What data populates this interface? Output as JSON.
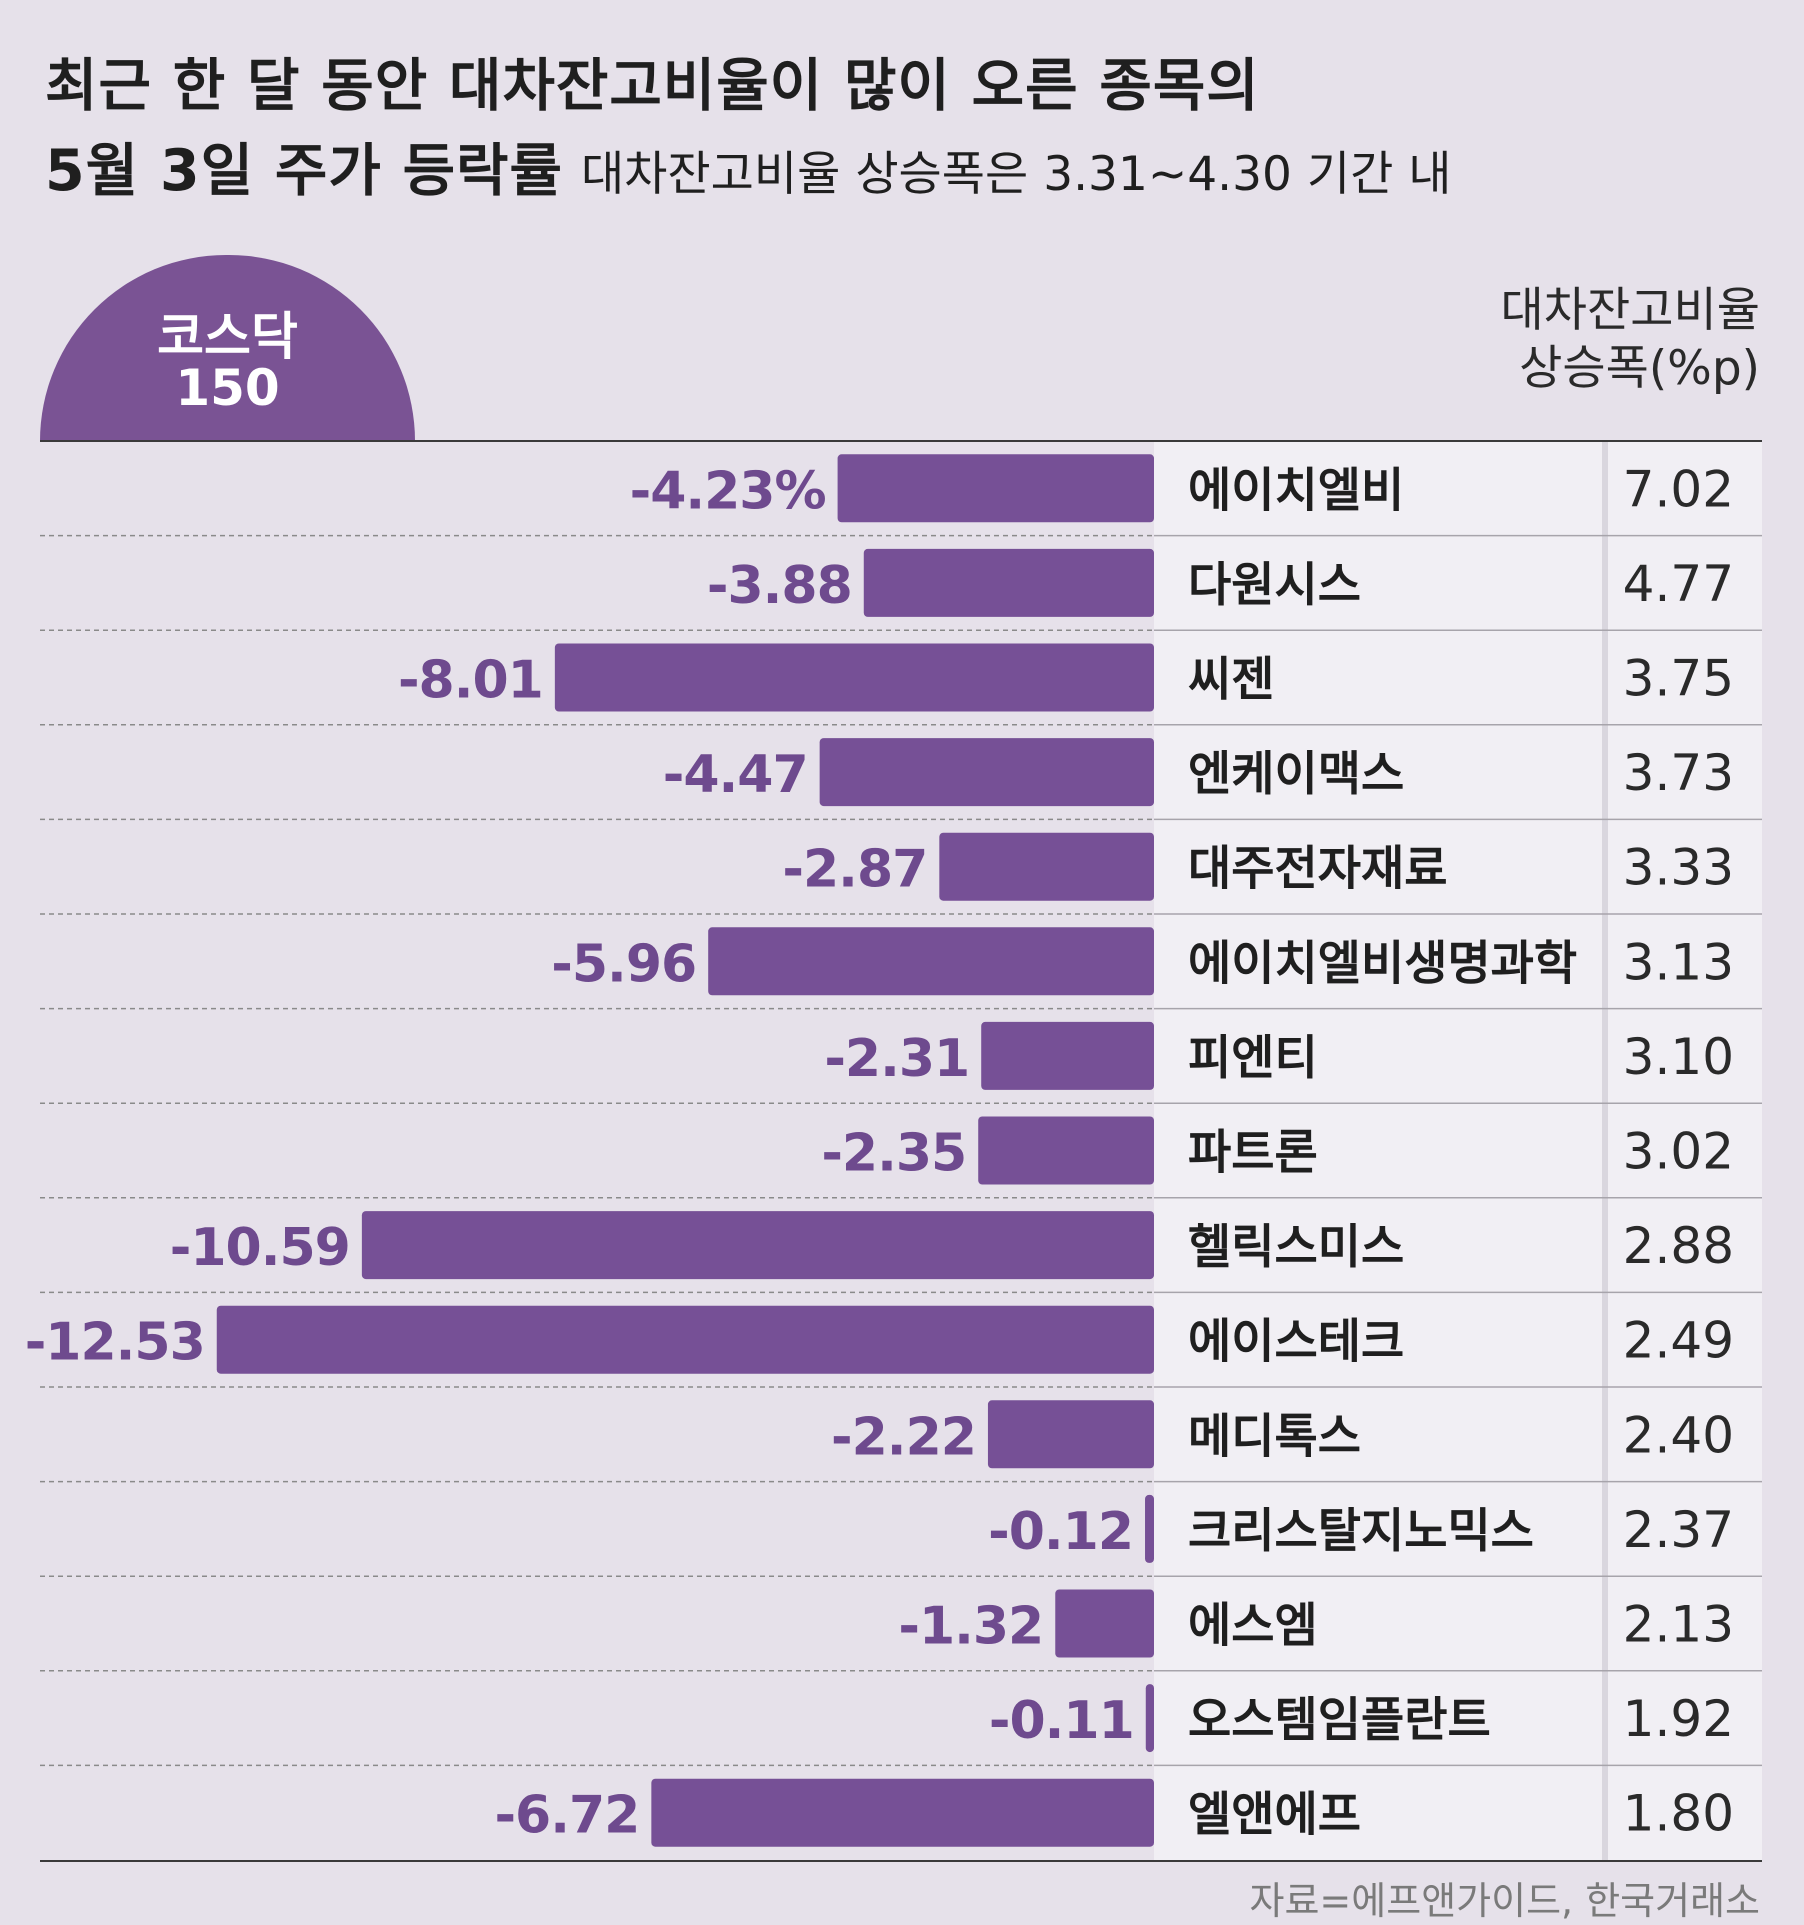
{
  "title": {
    "line1": "최근 한 달 동안 대차잔고비율이 많이 오른 종목의",
    "line2": "5월 3일 주가 등락률",
    "subtitle": "대차잔고비율 상승폭은 3.31~4.30 기간 내"
  },
  "market": {
    "name": "코스닥",
    "number": "150"
  },
  "column_header": {
    "line1": "대차잔고비율",
    "line2": "상승폭(%p)"
  },
  "source": "자료=에프앤가이드, 한국거래소",
  "colors": {
    "bar": "#765096",
    "label": "#6e4a8e",
    "background": "#e6e1ea",
    "table_bg": "#f1eff4"
  },
  "chart_data": {
    "type": "bar",
    "orientation": "horizontal",
    "title": "최근 한 달 동안 대차잔고비율이 많이 오른 종목의 5월 3일 주가 등락률",
    "value_unit": "%",
    "secondary_label": "대차잔고비율 상승폭(%p)",
    "categories": [
      "에이치엘비",
      "다원시스",
      "씨젠",
      "엔케이맥스",
      "대주전자재료",
      "에이치엘비생명과학",
      "피엔티",
      "파트론",
      "헬릭스미스",
      "에이스테크",
      "메디톡스",
      "크리스탈지노믹스",
      "에스엠",
      "오스템임플란트",
      "엘앤에프"
    ],
    "values": [
      -4.23,
      -3.88,
      -8.01,
      -4.47,
      -2.87,
      -5.96,
      -2.31,
      -2.35,
      -10.59,
      -12.53,
      -2.22,
      -0.12,
      -1.32,
      -0.11,
      -6.72
    ],
    "value_labels": [
      "-4.23%",
      "-3.88",
      "-8.01",
      "-4.47",
      "-2.87",
      "-5.96",
      "-2.31",
      "-2.35",
      "-10.59",
      "-12.53",
      "-2.22",
      "-0.12",
      "-1.32",
      "-0.11",
      "-6.72"
    ],
    "secondary_values": [
      "7.02",
      "4.77",
      "3.75",
      "3.73",
      "3.33",
      "3.13",
      "3.10",
      "3.02",
      "2.88",
      "2.49",
      "2.40",
      "2.37",
      "2.13",
      "1.92",
      "1.80"
    ]
  }
}
